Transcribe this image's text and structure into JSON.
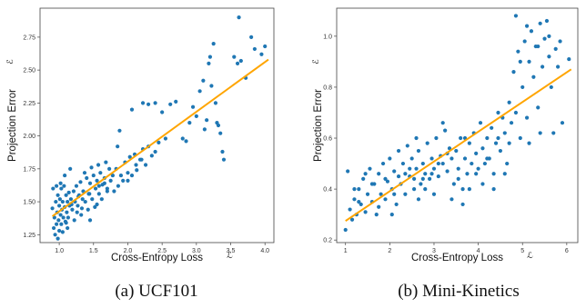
{
  "chart_data": [
    {
      "type": "scatter",
      "caption": "(a) UCF101",
      "xlabel": "Cross-Entropy Loss",
      "ylabel": "Projection Error",
      "xlabel_symbol": "ℒ",
      "ylabel_symbol": "ℰ",
      "xlim": [
        0.72,
        4.13
      ],
      "ylim": [
        1.19,
        2.97
      ],
      "xticks": [
        1.0,
        1.5,
        2.0,
        2.5,
        3.0,
        3.5,
        4.0
      ],
      "xtick_labels": [
        "1.0",
        "1.5",
        "2.0",
        "2.5",
        "3.0",
        "3.5",
        "4.0"
      ],
      "yticks": [
        1.25,
        1.5,
        1.75,
        2.0,
        2.25,
        2.5,
        2.75
      ],
      "ytick_labels": [
        "1.25",
        "1.50",
        "1.75",
        "2.00",
        "2.25",
        "2.50",
        "2.75"
      ],
      "point_color": "#1f77b4",
      "fit_color": "#ffa500",
      "fit_line": {
        "x": [
          0.9,
          4.05
        ],
        "y": [
          1.39,
          2.58
        ]
      },
      "points": [
        [
          0.9,
          1.45
        ],
        [
          0.92,
          1.3
        ],
        [
          0.93,
          1.38
        ],
        [
          0.95,
          1.5
        ],
        [
          0.96,
          1.33
        ],
        [
          0.97,
          1.42
        ],
        [
          0.98,
          1.55
        ],
        [
          0.99,
          1.36
        ],
        [
          1.0,
          1.47
        ],
        [
          1.0,
          1.28
        ],
        [
          1.01,
          1.52
        ],
        [
          1.02,
          1.4
        ],
        [
          1.03,
          1.6
        ],
        [
          1.03,
          1.33
        ],
        [
          1.04,
          1.44
        ],
        [
          1.05,
          1.5
        ],
        [
          1.06,
          1.38
        ],
        [
          1.07,
          1.62
        ],
        [
          1.08,
          1.46
        ],
        [
          1.09,
          1.35
        ],
        [
          1.1,
          1.55
        ],
        [
          1.11,
          1.42
        ],
        [
          1.12,
          1.5
        ],
        [
          1.13,
          1.38
        ],
        [
          1.14,
          1.57
        ],
        [
          1.15,
          1.47
        ],
        [
          1.17,
          1.52
        ],
        [
          1.19,
          1.44
        ],
        [
          1.21,
          1.58
        ],
        [
          1.23,
          1.5
        ],
        [
          1.25,
          1.62
        ],
        [
          1.27,
          1.47
        ],
        [
          1.29,
          1.55
        ],
        [
          1.31,
          1.65
        ],
        [
          1.33,
          1.45
        ],
        [
          1.35,
          1.58
        ],
        [
          1.38,
          1.5
        ],
        [
          1.4,
          1.68
        ],
        [
          1.43,
          1.56
        ],
        [
          1.45,
          1.64
        ],
        [
          1.48,
          1.52
        ],
        [
          1.5,
          1.7
        ],
        [
          1.53,
          1.6
        ],
        [
          1.55,
          1.66
        ],
        [
          1.58,
          1.56
        ],
        [
          1.6,
          1.72
        ],
        [
          1.63,
          1.63
        ],
        [
          1.66,
          1.68
        ],
        [
          1.7,
          1.6
        ],
        [
          1.73,
          1.75
        ],
        [
          0.91,
          1.6
        ],
        [
          0.94,
          1.25
        ],
        [
          0.96,
          1.62
        ],
        [
          0.98,
          1.22
        ],
        [
          1.02,
          1.64
        ],
        [
          1.05,
          1.27
        ],
        [
          1.08,
          1.7
        ],
        [
          1.12,
          1.3
        ],
        [
          1.16,
          1.75
        ],
        [
          1.22,
          1.36
        ],
        [
          1.26,
          1.42
        ],
        [
          1.32,
          1.4
        ],
        [
          1.37,
          1.72
        ],
        [
          1.42,
          1.44
        ],
        [
          1.47,
          1.76
        ],
        [
          1.52,
          1.46
        ],
        [
          1.57,
          1.78
        ],
        [
          1.62,
          1.52
        ],
        [
          1.68,
          1.8
        ],
        [
          1.75,
          1.66
        ],
        [
          1.78,
          1.7
        ],
        [
          1.8,
          1.58
        ],
        [
          1.83,
          1.75
        ],
        [
          1.86,
          1.62
        ],
        [
          1.88,
          2.04
        ],
        [
          1.9,
          1.7
        ],
        [
          1.93,
          1.66
        ],
        [
          1.96,
          1.8
        ],
        [
          2.0,
          1.72
        ],
        [
          2.03,
          1.84
        ],
        [
          2.06,
          1.7
        ],
        [
          2.1,
          1.86
        ],
        [
          2.13,
          1.74
        ],
        [
          2.18,
          1.82
        ],
        [
          2.22,
          1.9
        ],
        [
          2.26,
          1.78
        ],
        [
          2.3,
          1.92
        ],
        [
          2.35,
          1.85
        ],
        [
          2.4,
          1.88
        ],
        [
          2.45,
          1.95
        ],
        [
          2.06,
          2.2
        ],
        [
          2.22,
          2.25
        ],
        [
          2.3,
          2.24
        ],
        [
          2.4,
          2.25
        ],
        [
          2.55,
          1.98
        ],
        [
          2.62,
          2.24
        ],
        [
          2.7,
          2.26
        ],
        [
          2.8,
          1.98
        ],
        [
          2.85,
          1.96
        ],
        [
          2.9,
          2.1
        ],
        [
          2.95,
          2.22
        ],
        [
          3.0,
          2.15
        ],
        [
          3.05,
          2.34
        ],
        [
          3.1,
          2.42
        ],
        [
          3.12,
          2.05
        ],
        [
          3.15,
          2.12
        ],
        [
          3.18,
          2.55
        ],
        [
          3.2,
          2.6
        ],
        [
          3.22,
          2.38
        ],
        [
          3.25,
          2.7
        ],
        [
          3.28,
          2.25
        ],
        [
          3.3,
          2.1
        ],
        [
          3.32,
          2.08
        ],
        [
          3.35,
          2.02
        ],
        [
          3.38,
          1.88
        ],
        [
          3.4,
          1.82
        ],
        [
          3.55,
          2.6
        ],
        [
          3.6,
          2.55
        ],
        [
          3.62,
          2.9
        ],
        [
          3.65,
          2.57
        ],
        [
          3.72,
          2.44
        ],
        [
          3.8,
          2.75
        ],
        [
          3.85,
          2.66
        ],
        [
          3.95,
          2.62
        ],
        [
          4.0,
          2.68
        ],
        [
          2.0,
          1.66
        ],
        [
          1.85,
          1.92
        ],
        [
          1.7,
          1.58
        ],
        [
          1.55,
          1.48
        ],
        [
          1.45,
          1.36
        ],
        [
          1.1,
          1.34
        ],
        [
          1.18,
          1.48
        ],
        [
          1.28,
          1.54
        ],
        [
          1.34,
          1.52
        ],
        [
          1.44,
          1.56
        ],
        [
          1.58,
          1.62
        ],
        [
          1.66,
          1.64
        ],
        [
          2.12,
          1.78
        ],
        [
          2.2,
          1.82
        ],
        [
          2.5,
          2.18
        ]
      ]
    },
    {
      "type": "scatter",
      "caption": "(b) Mini-Kinetics",
      "xlabel": "Cross-Entropy Loss",
      "ylabel": "Projection Error",
      "xlabel_symbol": "ℒ",
      "ylabel_symbol": "ℰ",
      "xlim": [
        0.8,
        6.25
      ],
      "ylim": [
        0.19,
        1.11
      ],
      "xticks": [
        1,
        2,
        3,
        4,
        5,
        6
      ],
      "xtick_labels": [
        "1",
        "2",
        "3",
        "4",
        "5",
        "6"
      ],
      "yticks": [
        0.2,
        0.4,
        0.6,
        0.8,
        1.0
      ],
      "ytick_labels": [
        "0.2",
        "0.4",
        "0.6",
        "0.8",
        "1.0"
      ],
      "point_color": "#1f77b4",
      "fit_color": "#ffa500",
      "fit_line": {
        "x": [
          1.0,
          6.1
        ],
        "y": [
          0.275,
          0.87
        ]
      },
      "points": [
        [
          1.0,
          0.24
        ],
        [
          1.05,
          0.47
        ],
        [
          1.1,
          0.32
        ],
        [
          1.15,
          0.28
        ],
        [
          1.2,
          0.36
        ],
        [
          1.25,
          0.3
        ],
        [
          1.3,
          0.4
        ],
        [
          1.35,
          0.34
        ],
        [
          1.4,
          0.44
        ],
        [
          1.45,
          0.31
        ],
        [
          1.5,
          0.38
        ],
        [
          1.55,
          0.48
        ],
        [
          1.6,
          0.35
        ],
        [
          1.65,
          0.42
        ],
        [
          1.7,
          0.3
        ],
        [
          1.75,
          0.46
        ],
        [
          1.8,
          0.38
        ],
        [
          1.85,
          0.5
        ],
        [
          1.9,
          0.36
        ],
        [
          1.95,
          0.43
        ],
        [
          2.0,
          0.52
        ],
        [
          2.05,
          0.4
        ],
        [
          2.1,
          0.47
        ],
        [
          2.15,
          0.34
        ],
        [
          2.2,
          0.55
        ],
        [
          2.25,
          0.42
        ],
        [
          2.3,
          0.5
        ],
        [
          2.35,
          0.38
        ],
        [
          2.4,
          0.57
        ],
        [
          2.45,
          0.45
        ],
        [
          2.5,
          0.52
        ],
        [
          2.55,
          0.4
        ],
        [
          2.6,
          0.48
        ],
        [
          2.65,
          0.55
        ],
        [
          2.7,
          0.42
        ],
        [
          2.75,
          0.5
        ],
        [
          2.8,
          0.46
        ],
        [
          2.85,
          0.58
        ],
        [
          2.9,
          0.44
        ],
        [
          2.95,
          0.52
        ],
        [
          3.0,
          0.48
        ],
        [
          3.05,
          0.6
        ],
        [
          3.1,
          0.45
        ],
        [
          3.15,
          0.53
        ],
        [
          3.2,
          0.5
        ],
        [
          3.25,
          0.63
        ],
        [
          3.3,
          0.47
        ],
        [
          3.35,
          0.56
        ],
        [
          3.4,
          0.52
        ],
        [
          3.45,
          0.42
        ],
        [
          3.5,
          0.55
        ],
        [
          3.55,
          0.48
        ],
        [
          3.6,
          0.6
        ],
        [
          3.65,
          0.4
        ],
        [
          3.7,
          0.52
        ],
        [
          3.75,
          0.46
        ],
        [
          3.8,
          0.58
        ],
        [
          3.85,
          0.5
        ],
        [
          3.9,
          0.62
        ],
        [
          3.95,
          0.54
        ],
        [
          4.0,
          0.48
        ],
        [
          4.05,
          0.66
        ],
        [
          4.1,
          0.56
        ],
        [
          4.15,
          0.5
        ],
        [
          4.2,
          0.6
        ],
        [
          4.25,
          0.52
        ],
        [
          4.3,
          0.64
        ],
        [
          4.35,
          0.46
        ],
        [
          4.4,
          0.58
        ],
        [
          4.45,
          0.7
        ],
        [
          4.5,
          0.55
        ],
        [
          4.55,
          0.68
        ],
        [
          4.6,
          0.62
        ],
        [
          4.65,
          0.5
        ],
        [
          4.7,
          0.74
        ],
        [
          4.75,
          0.66
        ],
        [
          4.8,
          0.86
        ],
        [
          4.85,
          0.7
        ],
        [
          4.9,
          0.94
        ],
        [
          4.95,
          0.6
        ],
        [
          5.0,
          0.8
        ],
        [
          5.05,
          0.98
        ],
        [
          5.1,
          0.68
        ],
        [
          5.15,
          0.9
        ],
        [
          5.2,
          1.02
        ],
        [
          5.25,
          0.84
        ],
        [
          5.3,
          0.96
        ],
        [
          5.35,
          0.72
        ],
        [
          5.4,
          1.05
        ],
        [
          5.45,
          0.88
        ],
        [
          5.5,
          0.99
        ],
        [
          5.55,
          1.06
        ],
        [
          5.6,
          0.92
        ],
        [
          5.65,
          0.8
        ],
        [
          5.7,
          0.62
        ],
        [
          5.75,
          0.95
        ],
        [
          5.8,
          0.88
        ],
        [
          5.85,
          0.98
        ],
        [
          5.9,
          0.66
        ],
        [
          6.05,
          0.91
        ],
        [
          1.3,
          0.35
        ],
        [
          1.6,
          0.42
        ],
        [
          1.9,
          0.44
        ],
        [
          2.1,
          0.38
        ],
        [
          2.35,
          0.46
        ],
        [
          2.55,
          0.44
        ],
        [
          2.8,
          0.4
        ],
        [
          3.0,
          0.38
        ],
        [
          3.2,
          0.66
        ],
        [
          3.4,
          0.36
        ],
        [
          3.7,
          0.6
        ],
        [
          3.95,
          0.46
        ],
        [
          4.2,
          0.52
        ],
        [
          4.45,
          0.6
        ],
        [
          4.7,
          0.58
        ],
        [
          4.85,
          1.08
        ],
        [
          4.95,
          0.9
        ],
        [
          5.1,
          1.04
        ],
        [
          5.35,
          0.96
        ],
        [
          5.6,
          1.0
        ],
        [
          2.2,
          0.45
        ],
        [
          2.45,
          0.48
        ],
        [
          2.75,
          0.44
        ],
        [
          3.1,
          0.5
        ],
        [
          3.55,
          0.44
        ],
        [
          3.8,
          0.4
        ],
        [
          4.1,
          0.42
        ],
        [
          4.6,
          0.46
        ],
        [
          1.2,
          0.4
        ],
        [
          1.75,
          0.33
        ],
        [
          2.05,
          0.3
        ],
        [
          2.65,
          0.36
        ],
        [
          3.65,
          0.34
        ],
        [
          4.35,
          0.4
        ],
        [
          5.15,
          0.58
        ],
        [
          5.4,
          0.62
        ],
        [
          3.3,
          0.54
        ],
        [
          2.95,
          0.46
        ],
        [
          1.45,
          0.46
        ],
        [
          2.6,
          0.6
        ]
      ]
    }
  ]
}
